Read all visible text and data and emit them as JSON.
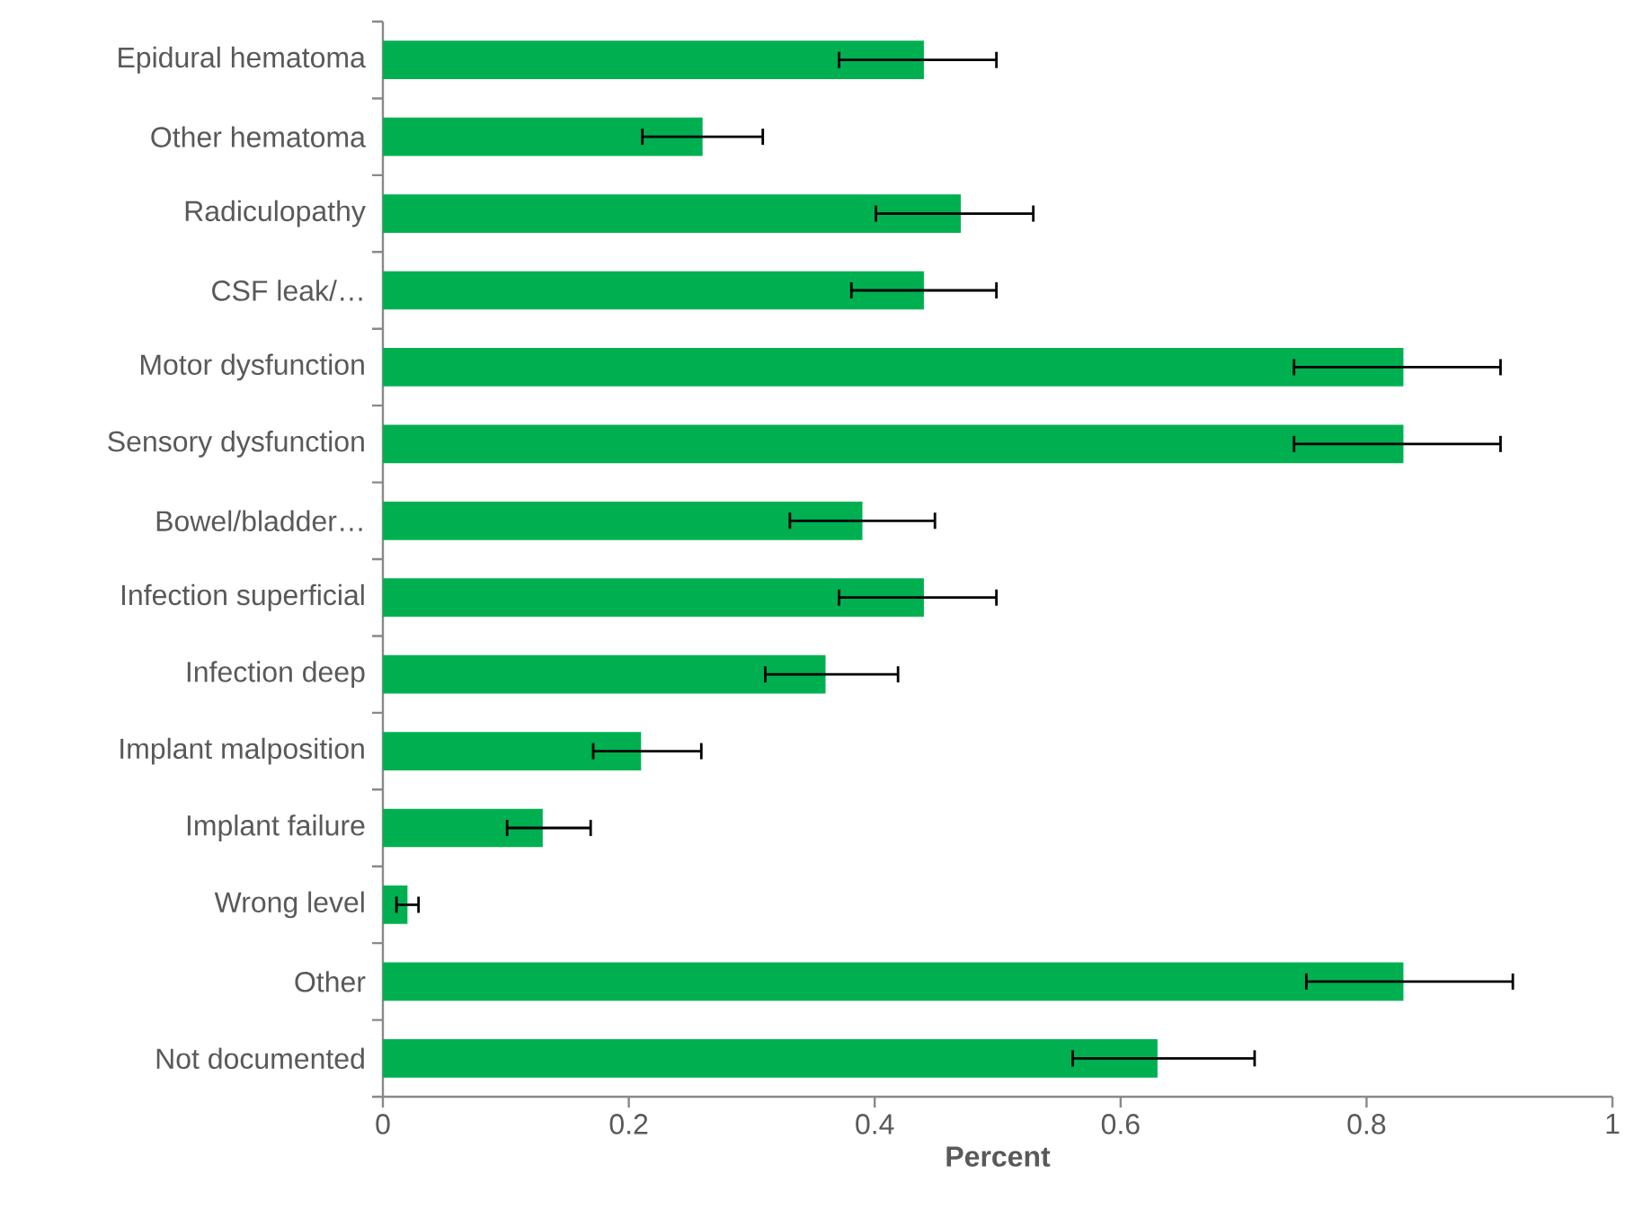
{
  "chart_data": {
    "type": "bar",
    "orientation": "horizontal",
    "xlabel": "Percent",
    "categories": [
      "Epidural hematoma",
      "Other hematoma",
      "Radiculopathy",
      "CSF leak/…",
      "Motor dysfunction",
      "Sensory dysfunction",
      "Bowel/bladder…",
      "Infection superficial",
      "Infection deep",
      "Implant malposition",
      "Implant failure",
      "Wrong level",
      "Other",
      "Not documented"
    ],
    "values": [
      0.44,
      0.26,
      0.47,
      0.44,
      0.83,
      0.83,
      0.39,
      0.44,
      0.36,
      0.21,
      0.13,
      0.02,
      0.83,
      0.63
    ],
    "errors": [
      [
        0.37,
        0.5
      ],
      [
        0.21,
        0.31
      ],
      [
        0.4,
        0.53
      ],
      [
        0.38,
        0.5
      ],
      [
        0.74,
        0.91
      ],
      [
        0.74,
        0.91
      ],
      [
        0.33,
        0.45
      ],
      [
        0.37,
        0.5
      ],
      [
        0.31,
        0.42
      ],
      [
        0.17,
        0.26
      ],
      [
        0.1,
        0.17
      ],
      [
        0.01,
        0.03
      ],
      [
        0.75,
        0.92
      ],
      [
        0.56,
        0.71
      ]
    ],
    "color": "#00b050",
    "xlim": [
      0,
      1
    ],
    "xticks": [
      0,
      0.2,
      0.4,
      0.6,
      0.8,
      1
    ]
  }
}
